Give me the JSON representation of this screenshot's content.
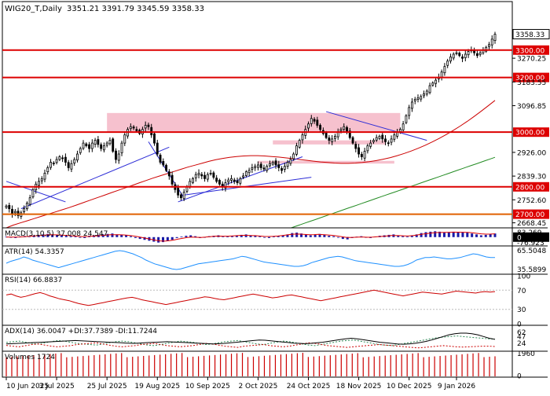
{
  "header": {
    "symbol": "WIG20_T,Daily",
    "ohlc": "3351.21 3391.79 3345.59 3358.33"
  },
  "chart_data": {
    "type": "candlestick",
    "price_axis": {
      "range": [
        2650,
        3420
      ],
      "ticks": [
        "3270.25",
        "3183.55",
        "3096.85",
        "2926.00",
        "2839.30",
        "2752.60",
        "2668.45"
      ],
      "level_labels": [
        "3300.00",
        "3200.00",
        "3000.00",
        "2800.00",
        "2700.00"
      ],
      "last_price": "3358.33"
    },
    "x_ticks": [
      "10 Jun 2025",
      "3 Jul 2025",
      "25 Jul 2025",
      "19 Aug 2025",
      "10 Sep 2025",
      "2 Oct 2025",
      "24 Oct 2025",
      "18 Nov 2025",
      "10 Dec 2025",
      "9 Jan 2026"
    ],
    "closes": [
      2730,
      2720,
      2700,
      2710,
      2695,
      2705,
      2720,
      2740,
      2760,
      2790,
      2810,
      2820,
      2830,
      2850,
      2870,
      2890,
      2885,
      2900,
      2910,
      2905,
      2890,
      2870,
      2885,
      2900,
      2920,
      2940,
      2960,
      2950,
      2940,
      2960,
      2970,
      2955,
      2940,
      2950,
      2960,
      2970,
      2930,
      2900,
      2920,
      2960,
      2990,
      3010,
      3020,
      3015,
      3005,
      2995,
      3010,
      3025,
      3020,
      2990,
      2960,
      2920,
      2890,
      2880,
      2860,
      2840,
      2810,
      2790,
      2770,
      2760,
      2780,
      2800,
      2820,
      2830,
      2845,
      2850,
      2840,
      2830,
      2845,
      2850,
      2835,
      2820,
      2810,
      2800,
      2815,
      2825,
      2830,
      2820,
      2815,
      2830,
      2840,
      2855,
      2860,
      2870,
      2875,
      2880,
      2870,
      2865,
      2875,
      2885,
      2890,
      2880,
      2870,
      2860,
      2875,
      2890,
      2900,
      2920,
      2950,
      2970,
      2990,
      3010,
      3030,
      3050,
      3040,
      3025,
      3010,
      2995,
      2980,
      2970,
      2975,
      2985,
      3000,
      3010,
      3020,
      3000,
      2980,
      2960,
      2940,
      2920,
      2910,
      2930,
      2950,
      2960,
      2970,
      2980,
      2985,
      2975,
      2965,
      2960,
      2975,
      2990,
      3000,
      3010,
      3030,
      3060,
      3090,
      3110,
      3120,
      3125,
      3130,
      3140,
      3150,
      3170,
      3180,
      3190,
      3200,
      3220,
      3240,
      3260,
      3275,
      3285,
      3290,
      3280,
      3270,
      3285,
      3295,
      3300,
      3290,
      3280,
      3290,
      3300,
      3310,
      3320,
      3340,
      3358
    ],
    "support_resistance": [
      3300,
      3200,
      3000,
      2800,
      2700
    ],
    "zones": [
      {
        "from": 3000,
        "to": 3070
      },
      {
        "from": 2955,
        "to": 2970
      },
      {
        "from": 2885,
        "to": 2895
      }
    ],
    "ma_red": [
      2650,
      2660,
      2668,
      2676,
      2684,
      2692,
      2700,
      2708,
      2716,
      2724,
      2733,
      2742,
      2751,
      2760,
      2769,
      2778,
      2787,
      2796,
      2805,
      2814,
      2823,
      2832,
      2840,
      2848,
      2856,
      2864,
      2872,
      2879,
      2886,
      2893,
      2899,
      2904,
      2908,
      2911,
      2913,
      2914,
      2914,
      2913,
      2911,
      2909,
      2906,
      2903,
      2900,
      2897,
      2894,
      2891,
      2889,
      2887,
      2886,
      2886,
      2887,
      2889,
      2892,
      2896,
      2901,
      2907,
      2914,
      2922,
      2931,
      2941,
      2952,
      2964,
      2977,
      2991,
      3006,
      3022,
      3039,
      3057,
      3076,
      3096,
      3116
    ],
    "ma_green": [
      2650,
      2656,
      2662,
      2668,
      2674,
      2680,
      2686,
      2692,
      2698,
      2704,
      2710,
      2716,
      2722,
      2728,
      2734,
      2740,
      2746,
      2752,
      2758,
      2764,
      2770,
      2776,
      2782,
      2788,
      2794,
      2800,
      2806,
      2812,
      2818,
      2824,
      2830,
      2836,
      2842,
      2848,
      2854,
      2860,
      2866,
      2872,
      2878,
      2884,
      2890,
      2896,
      2902,
      2908
    ],
    "trendlines": [
      {
        "from": [
          0,
          2820
        ],
        "to": [
          20,
          2745
        ]
      },
      {
        "from": [
          5,
          2720
        ],
        "to": [
          55,
          2945
        ]
      },
      {
        "from": [
          48,
          2965
        ],
        "to": [
          60,
          2760
        ]
      },
      {
        "from": [
          58,
          2745
        ],
        "to": [
          100,
          2910
        ]
      },
      {
        "from": [
          60,
          2770
        ],
        "to": [
          103,
          2835
        ]
      },
      {
        "from": [
          108,
          3075
        ],
        "to": [
          142,
          2970
        ]
      }
    ],
    "indicators": {
      "macd": {
        "label": "MACD(3,10,5) 37.008 24.547",
        "ticks": [
          "83.269",
          "0",
          "-76.923"
        ],
        "range": [
          -80,
          85
        ],
        "hist": [
          5,
          -5,
          -10,
          8,
          12,
          10,
          20,
          25,
          30,
          35,
          30,
          25,
          20,
          15,
          10,
          5,
          -5,
          -10,
          15,
          20,
          25,
          30,
          35,
          40,
          30,
          25,
          20,
          10,
          -10,
          -20,
          -30,
          -40,
          -50,
          -60,
          -55,
          -45,
          -30,
          -10,
          5,
          15,
          20,
          10,
          -10,
          -5,
          10,
          15,
          20,
          10,
          5,
          10,
          20,
          25,
          30,
          20,
          15,
          10,
          -5,
          -10,
          5,
          15,
          20,
          30,
          45,
          50,
          40,
          30,
          20,
          25,
          35,
          25,
          15,
          10,
          -5,
          -20,
          -25,
          -10,
          5,
          10,
          -5,
          -10,
          5,
          15,
          20,
          25,
          30,
          20,
          10,
          5,
          15,
          30,
          45,
          55,
          60,
          65,
          60,
          50,
          55,
          60,
          58,
          55,
          50,
          40,
          30,
          20,
          25,
          35,
          40
        ],
        "signal": [
          0,
          0,
          0,
          2,
          5,
          8,
          12,
          16,
          20,
          24,
          26,
          25,
          23,
          20,
          16,
          12,
          8,
          5,
          7,
          10,
          14,
          18,
          22,
          26,
          27,
          26,
          24,
          20,
          14,
          6,
          -4,
          -14,
          -24,
          -34,
          -42,
          -44,
          -40,
          -32,
          -22,
          -12,
          -4,
          0,
          -2,
          -4,
          0,
          5,
          10,
          11,
          10,
          10,
          13,
          16,
          20,
          20,
          18,
          16,
          12,
          8,
          7,
          9,
          12,
          17,
          24,
          31,
          34,
          33,
          29,
          27,
          28,
          30,
          28,
          24,
          20,
          14,
          6,
          -2,
          -4,
          -2,
          1,
          0,
          -2,
          0,
          4,
          8,
          12,
          17,
          18,
          16,
          13,
          14,
          18,
          25,
          33,
          40,
          46,
          50,
          51,
          52,
          54,
          55,
          55,
          54,
          52,
          48,
          42,
          36,
          33,
          34,
          36
        ]
      },
      "atr": {
        "label": "ATR(14) 54.3357",
        "ticks": [
          "65.5048",
          "35.5899"
        ],
        "range": [
          30,
          70
        ],
        "values": [
          45,
          48,
          50,
          52,
          55,
          53,
          50,
          48,
          46,
          44,
          42,
          40,
          38,
          40,
          42,
          44,
          46,
          48,
          50,
          52,
          54,
          56,
          58,
          60,
          62,
          64,
          65,
          64,
          62,
          60,
          57,
          54,
          50,
          47,
          44,
          42,
          40,
          38,
          36,
          35,
          36,
          38,
          40,
          42,
          44,
          45,
          46,
          47,
          48,
          49,
          50,
          51,
          52,
          54,
          56,
          55,
          53,
          51,
          49,
          47,
          46,
          45,
          44,
          43,
          42,
          41,
          40,
          40,
          41,
          43,
          46,
          48,
          50,
          52,
          54,
          55,
          56,
          55,
          53,
          51,
          49,
          48,
          47,
          46,
          45,
          44,
          43,
          42,
          41,
          40,
          40,
          41,
          43,
          46,
          50,
          52,
          54,
          54,
          55,
          54,
          53,
          52,
          52,
          53,
          54,
          56,
          58,
          60,
          59,
          57,
          55,
          54,
          54
        ]
      },
      "rsi": {
        "label": "RSI(14) 66.8837",
        "ticks": [
          "100",
          "70",
          "30",
          "0"
        ],
        "range": [
          0,
          100
        ],
        "values": [
          60,
          62,
          58,
          55,
          57,
          60,
          63,
          65,
          62,
          58,
          55,
          52,
          50,
          48,
          45,
          42,
          40,
          38,
          40,
          42,
          44,
          46,
          48,
          50,
          52,
          54,
          55,
          53,
          50,
          48,
          46,
          44,
          42,
          40,
          42,
          44,
          46,
          48,
          50,
          52,
          54,
          56,
          55,
          53,
          51,
          50,
          52,
          54,
          56,
          58,
          60,
          62,
          60,
          58,
          56,
          54,
          55,
          57,
          59,
          60,
          58,
          56,
          54,
          52,
          50,
          48,
          50,
          52,
          54,
          56,
          58,
          60,
          62,
          64,
          66,
          68,
          70,
          68,
          66,
          64,
          62,
          60,
          58,
          60,
          62,
          64,
          66,
          65,
          64,
          63,
          62,
          64,
          66,
          68,
          67,
          66,
          65,
          64,
          66,
          67,
          66,
          67
        ]
      },
      "adx": {
        "label": "ADX(14) 36.0047 +DI:37.7389 -DI:11.7244",
        "ticks": [
          "62",
          "47",
          "24"
        ],
        "range": [
          0,
          80
        ],
        "adx": [
          20,
          21,
          22,
          23,
          24,
          25,
          26,
          27,
          28,
          29,
          30,
          31,
          32,
          31,
          30,
          29,
          28,
          27,
          26,
          25,
          24,
          23,
          22,
          23,
          24,
          25,
          26,
          27,
          28,
          27,
          26,
          25,
          24,
          23,
          22,
          21,
          20,
          21,
          22,
          24,
          26,
          28,
          30,
          32,
          34,
          33,
          31,
          29,
          27,
          25,
          23,
          22,
          21,
          22,
          24,
          26,
          29,
          32,
          35,
          38,
          40,
          38,
          35,
          32,
          29,
          26,
          24,
          22,
          20,
          19,
          20,
          22,
          25,
          29,
          34,
          40,
          46,
          52,
          56,
          58,
          58,
          56,
          52,
          46,
          40,
          36
        ],
        "plus_di": [
          25,
          28,
          30,
          26,
          22,
          20,
          24,
          28,
          32,
          30,
          26,
          22,
          20,
          18,
          16,
          20,
          24,
          28,
          30,
          28,
          24,
          20,
          16,
          14,
          18,
          22,
          26,
          30,
          28,
          26,
          22,
          18,
          20,
          24,
          28,
          30,
          32,
          28,
          24,
          20,
          18,
          22,
          26,
          30,
          28,
          24,
          20,
          16,
          14,
          18,
          22,
          26,
          30,
          32,
          34,
          30,
          26,
          22,
          18,
          16,
          14,
          18,
          22,
          26,
          30,
          34,
          38,
          42,
          44,
          46,
          48,
          46,
          44,
          42,
          40,
          38,
          37
        ],
        "minus_di": [
          15,
          12,
          10,
          14,
          18,
          20,
          16,
          12,
          10,
          12,
          14,
          18,
          20,
          22,
          24,
          20,
          16,
          12,
          10,
          12,
          14,
          18,
          20,
          22,
          18,
          14,
          12,
          10,
          12,
          14,
          18,
          22,
          20,
          16,
          12,
          10,
          8,
          12,
          14,
          16,
          18,
          14,
          12,
          10,
          12,
          16,
          20,
          24,
          22,
          18,
          14,
          12,
          10,
          8,
          10,
          12,
          14,
          16,
          18,
          16,
          14,
          12,
          10,
          8,
          6,
          8,
          10,
          12,
          14,
          12,
          10,
          9,
          10,
          11,
          12,
          12,
          11
        ]
      },
      "volume": {
        "label": "Volumes 1724",
        "ticks": [
          "1960",
          "0"
        ],
        "range": [
          0,
          2000
        ],
        "bars": 90,
        "last": 1724
      }
    }
  }
}
